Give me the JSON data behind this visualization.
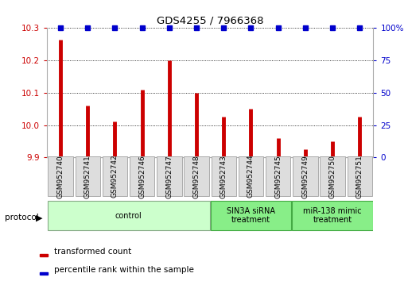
{
  "title": "GDS4255 / 7966368",
  "samples": [
    "GSM952740",
    "GSM952741",
    "GSM952742",
    "GSM952746",
    "GSM952747",
    "GSM952748",
    "GSM952743",
    "GSM952744",
    "GSM952745",
    "GSM952749",
    "GSM952750",
    "GSM952751"
  ],
  "bar_values": [
    10.265,
    10.06,
    10.01,
    10.11,
    10.2,
    10.1,
    10.025,
    10.05,
    9.96,
    9.925,
    9.95,
    10.025
  ],
  "percentile_values": [
    100,
    100,
    100,
    100,
    100,
    100,
    100,
    100,
    100,
    100,
    100,
    100
  ],
  "bar_color": "#cc0000",
  "percentile_color": "#0000cc",
  "ylim_left": [
    9.9,
    10.3
  ],
  "yticks_left": [
    9.9,
    10.0,
    10.1,
    10.2,
    10.3
  ],
  "ylim_right": [
    0,
    100
  ],
  "yticks_right": [
    0,
    25,
    50,
    75,
    100
  ],
  "yticklabels_right": [
    "0",
    "25",
    "50",
    "75",
    "100%"
  ],
  "group_configs": [
    {
      "start": 0,
      "end": 6,
      "label": "control",
      "facecolor": "#ccffcc",
      "edgecolor": "#88aa88"
    },
    {
      "start": 6,
      "end": 9,
      "label": "SIN3A siRNA\ntreatment",
      "facecolor": "#88ee88",
      "edgecolor": "#44aa44"
    },
    {
      "start": 9,
      "end": 12,
      "label": "miR-138 mimic\ntreatment",
      "facecolor": "#88ee88",
      "edgecolor": "#44aa44"
    }
  ],
  "protocol_label": "protocol",
  "bar_width": 0.12,
  "background_color": "#ffffff",
  "tick_color_left": "#cc0000",
  "tick_color_right": "#0000cc",
  "sample_box_color": "#dddddd",
  "sample_box_edge": "#aaaaaa"
}
